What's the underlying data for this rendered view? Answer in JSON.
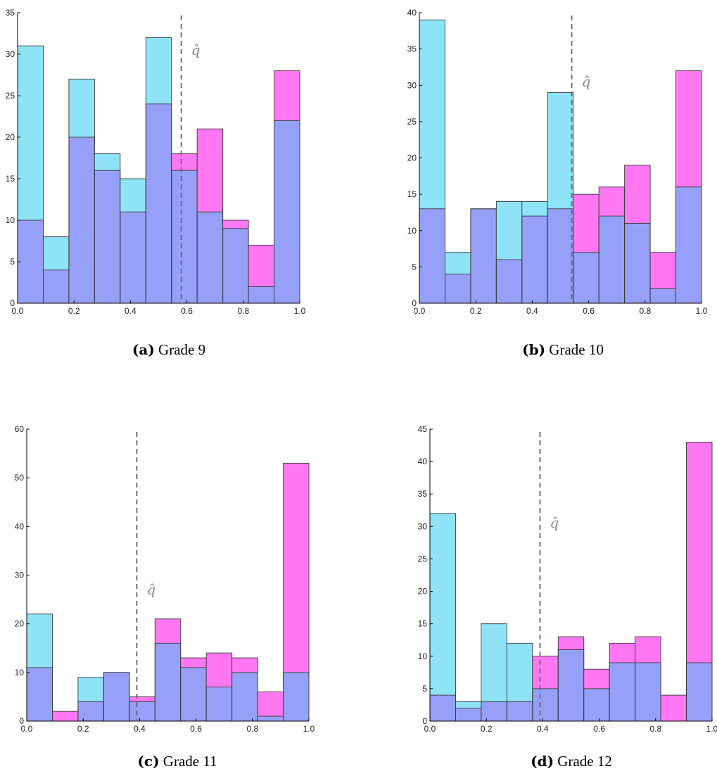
{
  "chart_data": [
    {
      "type": "bar",
      "caption_label": "(a)",
      "caption_text": "Grade 9",
      "xlim": [
        0,
        1
      ],
      "ylim": [
        0,
        35
      ],
      "x_ticks": [
        "0.0",
        "0.2",
        "0.4",
        "0.6",
        "0.8",
        "1.0"
      ],
      "y_ticks": [
        "0",
        "5",
        "10",
        "15",
        "20",
        "25",
        "30",
        "35"
      ],
      "threshold_label": "q̂",
      "threshold": 0.58,
      "series": [
        {
          "color": "#8fe3f7",
          "values": [
            31,
            8,
            27,
            18,
            15,
            32,
            16,
            11,
            9,
            2,
            22
          ]
        },
        {
          "color": "#ff77f2",
          "values": [
            10,
            4,
            20,
            16,
            11,
            24,
            18,
            21,
            10,
            7,
            28
          ]
        }
      ]
    },
    {
      "type": "bar",
      "caption_label": "(b)",
      "caption_text": "Grade 10",
      "xlim": [
        0,
        1
      ],
      "ylim": [
        0,
        40
      ],
      "x_ticks": [
        "0.0",
        "0.2",
        "0.4",
        "0.6",
        "0.8",
        "1.0"
      ],
      "y_ticks": [
        "0",
        "5",
        "10",
        "15",
        "20",
        "25",
        "30",
        "35",
        "40"
      ],
      "threshold_label": "q̂",
      "threshold": 0.54,
      "series": [
        {
          "color": "#8fe3f7",
          "values": [
            39,
            7,
            13,
            14,
            14,
            29,
            7,
            12,
            11,
            2,
            16
          ]
        },
        {
          "color": "#ff77f2",
          "values": [
            13,
            4,
            13,
            6,
            12,
            13,
            15,
            16,
            19,
            7,
            32
          ]
        }
      ]
    },
    {
      "type": "bar",
      "caption_label": "(c)",
      "caption_text": "Grade 11",
      "xlim": [
        0,
        1
      ],
      "ylim": [
        0,
        60
      ],
      "x_ticks": [
        "0.0",
        "0.2",
        "0.4",
        "0.6",
        "0.8",
        "1.0"
      ],
      "y_ticks": [
        "0",
        "10",
        "20",
        "30",
        "40",
        "50",
        "60"
      ],
      "threshold_label": "q̂",
      "threshold": 0.39,
      "series": [
        {
          "color": "#8fe3f7",
          "values": [
            22,
            0,
            9,
            10,
            4,
            16,
            11,
            7,
            10,
            1,
            10
          ]
        },
        {
          "color": "#ff77f2",
          "values": [
            11,
            2,
            4,
            10,
            5,
            21,
            13,
            14,
            13,
            6,
            53
          ]
        }
      ]
    },
    {
      "type": "bar",
      "caption_label": "(d)",
      "caption_text": "Grade 12",
      "xlim": [
        0,
        1
      ],
      "ylim": [
        0,
        45
      ],
      "x_ticks": [
        "0.0",
        "0.2",
        "0.4",
        "0.6",
        "0.8",
        "1.0"
      ],
      "y_ticks": [
        "0",
        "5",
        "10",
        "15",
        "20",
        "25",
        "30",
        "35",
        "40",
        "45"
      ],
      "threshold_label": "q̂",
      "threshold": 0.39,
      "series": [
        {
          "color": "#8fe3f7",
          "values": [
            32,
            3,
            15,
            12,
            5,
            11,
            5,
            9,
            9,
            0,
            9
          ]
        },
        {
          "color": "#ff77f2",
          "values": [
            4,
            2,
            3,
            3,
            10,
            13,
            8,
            12,
            13,
            4,
            43
          ]
        }
      ]
    }
  ],
  "overlap_color": "#97a0f8"
}
